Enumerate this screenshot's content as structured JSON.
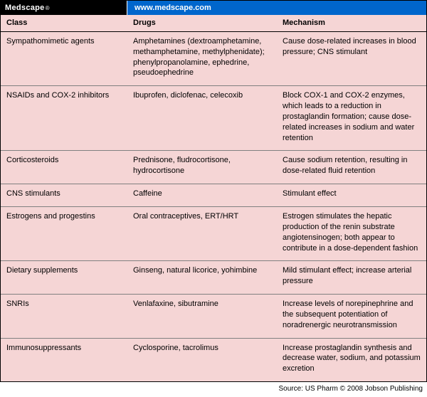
{
  "topbar": {
    "brand": "Medscape",
    "url": "www.medscape.com"
  },
  "columns": [
    "Class",
    "Drugs",
    "Mechanism"
  ],
  "rows": [
    {
      "class": "Sympathomimetic agents",
      "drugs": "Amphetamines (dextroamphetamine, methamphetamine, methylphenidate); phenylpropanolamine, ephedrine, pseudoephedrine",
      "mechanism": "Cause dose-related increases in blood pressure; CNS stimulant"
    },
    {
      "class": "NSAIDs and COX-2 inhibitors",
      "drugs": "Ibuprofen, diclofenac, celecoxib",
      "mechanism": "Block COX-1 and COX-2 enzymes, which leads to a reduction in prostaglandin formation; cause dose-related increases in sodium and water retention"
    },
    {
      "class": "Corticosteroids",
      "drugs": "Prednisone, fludrocortisone, hydrocortisone",
      "mechanism": "Cause sodium retention, resulting in dose-related fluid retention"
    },
    {
      "class": "CNS stimulants",
      "drugs": "Caffeine",
      "mechanism": "Stimulant effect"
    },
    {
      "class": "Estrogens and progestins",
      "drugs": "Oral contraceptives, ERT/HRT",
      "mechanism": "Estrogen stimulates the hepatic production of the renin substrate angiotensinogen; both appear to contribute in a dose-dependent fashion"
    },
    {
      "class": "Dietary supplements",
      "drugs": "Ginseng, natural licorice, yohimbine",
      "mechanism": "Mild stimulant effect; increase arterial pressure"
    },
    {
      "class": "SNRIs",
      "drugs": "Venlafaxine, sibutramine",
      "mechanism": "Increase levels of norepinephrine and the subsequent potentiation of noradrenergic neurotransmission"
    },
    {
      "class": "Immunosuppressants",
      "drugs": "Cyclosporine, tacrolimus",
      "mechanism": "Increase prostaglandin synthesis and decrease water, sodium, and potassium excretion"
    }
  ],
  "footer": "Source: US Pharm © 2008 Jobson Publishing",
  "style": {
    "table_bg": "#f5d5d5",
    "header_border": "#000000",
    "row_border": "#808080",
    "brand_bg": "#000000",
    "url_bg": "#0066cc",
    "font_size_body": 11,
    "font_size_footer": 10
  }
}
